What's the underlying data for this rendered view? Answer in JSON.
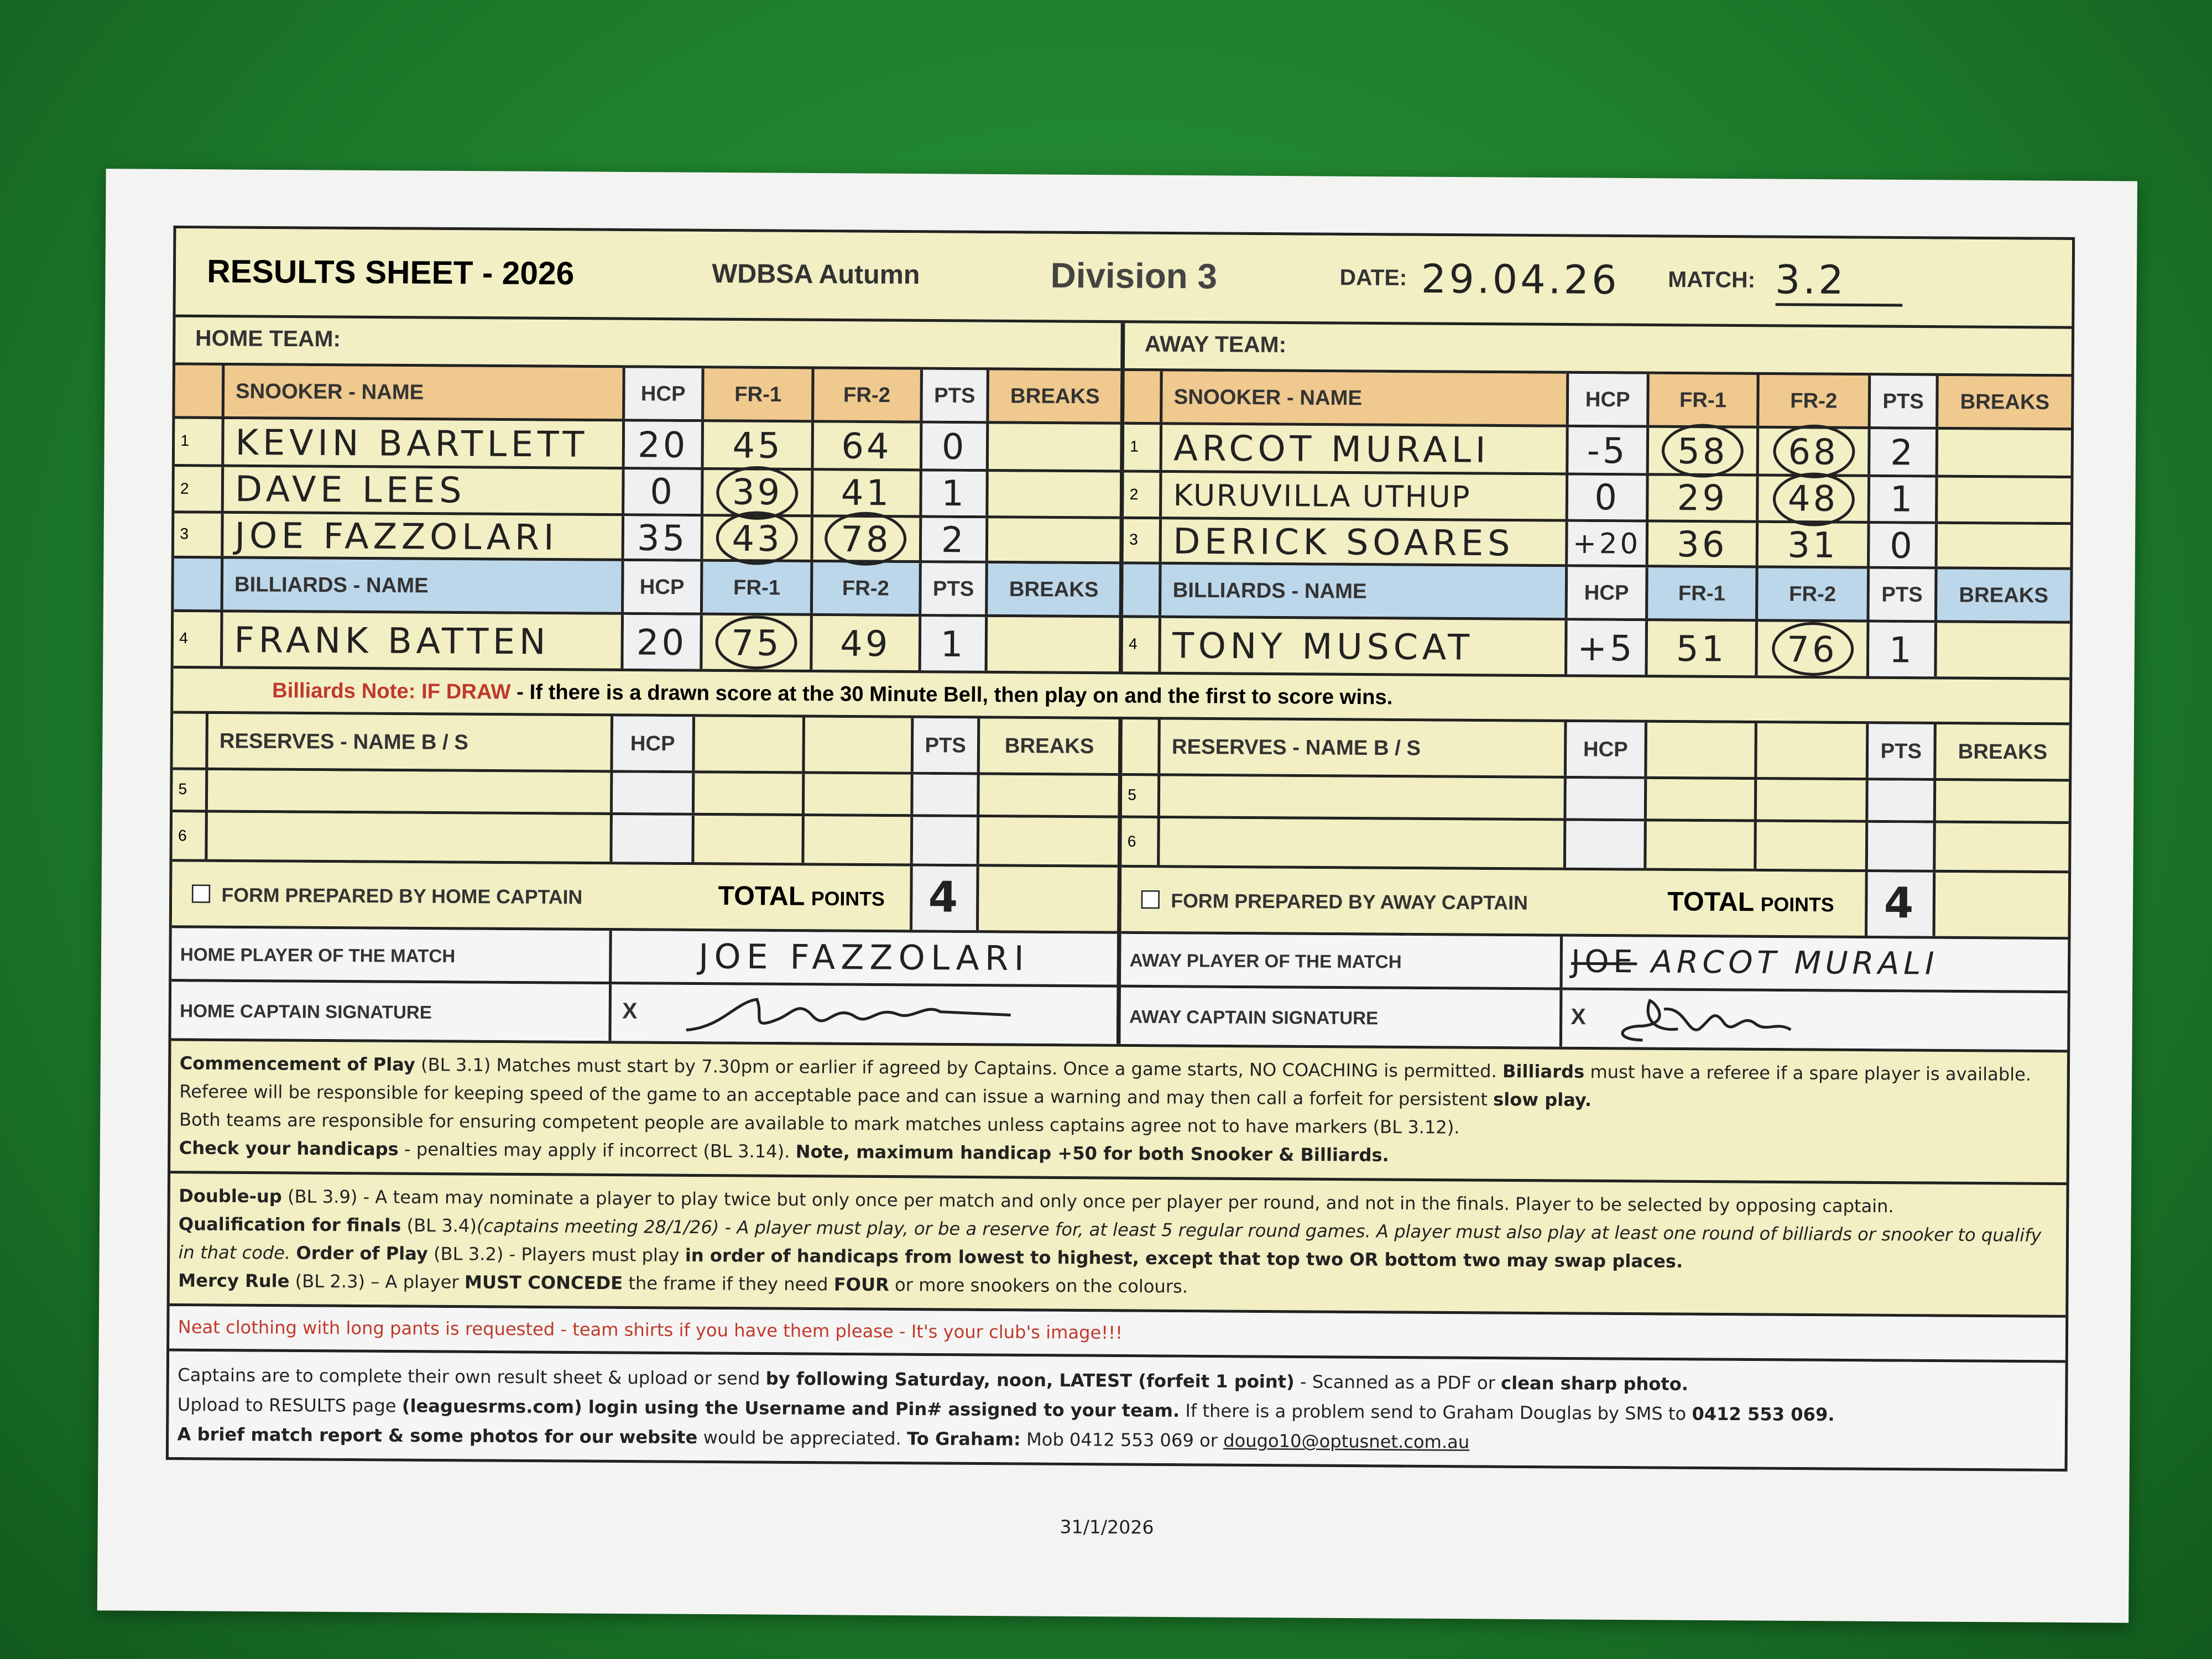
{
  "header": {
    "title": "RESULTS SHEET - 2026",
    "competition": "WDBSA Autumn",
    "division": "Division 3",
    "date_label": "DATE:",
    "date": "29.04.26",
    "match_label": "MATCH:",
    "match": "3.2"
  },
  "columns": {
    "hcp": "HCP",
    "fr1": "FR-1",
    "fr2": "FR-2",
    "pts": "PTS",
    "breaks": "BREAKS"
  },
  "home": {
    "team_label": "HOME TEAM:",
    "snooker_header": "SNOOKER  -  NAME",
    "billiards_header": "BILLIARDS  -   NAME",
    "players": [
      {
        "no": "1",
        "name": "KEVIN BARTLETT",
        "hcp": "20",
        "fr1": "45",
        "fr1_circled": false,
        "fr2": "64",
        "fr2_circled": false,
        "pts": "0",
        "breaks": ""
      },
      {
        "no": "2",
        "name": "DAVE LEES",
        "hcp": "0",
        "fr1": "39",
        "fr1_circled": true,
        "fr2": "41",
        "fr2_circled": false,
        "pts": "1",
        "breaks": ""
      },
      {
        "no": "3",
        "name": "JOE FAZZOLARI",
        "hcp": "35",
        "fr1": "43",
        "fr1_circled": true,
        "fr2": "78",
        "fr2_circled": true,
        "pts": "2",
        "breaks": ""
      },
      {
        "no": "4",
        "name": "FRANK BATTEN",
        "hcp": "20",
        "fr1": "75",
        "fr1_circled": true,
        "fr2": "49",
        "fr2_circled": false,
        "pts": "1",
        "breaks": ""
      }
    ],
    "reserves_header": "RESERVES  -  NAME B / S",
    "reserve_rows": [
      "5",
      "6"
    ],
    "form_label": "FORM PREPARED BY HOME CAPTAIN",
    "total_label": "TOTAL",
    "points_label": "POINTS",
    "total_points": "4",
    "potm_label": "HOME PLAYER OF THE MATCH",
    "potm": "JOE FAZZOLARI",
    "captain_sig_label": "HOME CAPTAIN SIGNATURE",
    "sig_x": "X"
  },
  "away": {
    "team_label": "AWAY TEAM:",
    "snooker_header": "SNOOKER  -  NAME",
    "billiards_header": "BILLIARDS  -   NAME",
    "players": [
      {
        "no": "1",
        "name": "ARCOT MURALI",
        "hcp": "-5",
        "fr1": "58",
        "fr1_circled": true,
        "fr2": "68",
        "fr2_circled": true,
        "pts": "2",
        "breaks": ""
      },
      {
        "no": "2",
        "name": "KURUVILLA UTHUP",
        "hcp": "0",
        "fr1": "29",
        "fr1_circled": false,
        "fr2": "48",
        "fr2_circled": true,
        "pts": "1",
        "breaks": ""
      },
      {
        "no": "3",
        "name": "DERICK SOARES",
        "hcp": "+20",
        "fr1": "36",
        "fr1_circled": false,
        "fr2": "31",
        "fr2_circled": false,
        "pts": "0",
        "breaks": ""
      },
      {
        "no": "4",
        "name": "TONY MUSCAT",
        "hcp": "+5",
        "fr1": "51",
        "fr1_circled": false,
        "fr2": "76",
        "fr2_circled": true,
        "pts": "1",
        "breaks": ""
      }
    ],
    "reserves_header": "RESERVES  -  NAME B / S",
    "reserve_rows": [
      "5",
      "6"
    ],
    "form_label": "FORM PREPARED BY AWAY CAPTAIN",
    "total_label": "TOTAL",
    "points_label": "POINTS",
    "total_points": "4",
    "potm_label": "AWAY PLAYER OF THE MATCH",
    "potm_struck": "JOE",
    "potm": "ARCOT MURALI",
    "captain_sig_label": "AWAY CAPTAIN SIGNATURE",
    "sig_x": "X"
  },
  "billiards_note": {
    "label": "Billiards Note:",
    "if_draw": "IF DRAW",
    "text": "- If there is a drawn score at the 30 Minute Bell, then play on and the first to score wins."
  },
  "rules": {
    "commencement_title": "Commencement of Play",
    "commencement_text": "(BL 3.1) Matches must start by 7.30pm or earlier if agreed by Captains. Once a game starts, NO COACHING is permitted.",
    "billiards_bold": "Billiards",
    "billiards_text": "must have a referee if a spare player is available. Referee will be responsible for keeping speed of the game to an acceptable pace and can issue a warning and may then call a forfeit for persistent",
    "slow_play": "slow play.",
    "markers_text": "Both teams are responsible for ensuring competent people are available to mark matches unless captains agree not to have markers (BL 3.12).",
    "handicaps_title": "Check your handicaps",
    "handicaps_text": "- penalties may apply if incorrect (BL 3.14).",
    "handicaps_note": "Note, maximum handicap +50 for both Snooker & Billiards.",
    "doubleup_title": "Double-up",
    "doubleup_text": "(BL 3.9) - A team may nominate a player to play twice but only once per match and only once per player per round, and not in the finals. Player to be selected by opposing captain.",
    "qualification_title": "Qualification for finals",
    "qualification_ref": "(BL 3.4)",
    "qualification_text": "(captains meeting 28/1/26) - A player must play, or be a reserve for, at least 5 regular round games. A player must also play at least one round of billiards or snooker to qualify in that code.",
    "order_title": "Order of Play",
    "order_text": "(BL 3.2) - Players must play",
    "order_bold": "in order of handicaps from lowest to highest, except that top two OR bottom two may swap places.",
    "mercy_title": "Mercy Rule",
    "mercy_text1": "(BL 2.3) – A player",
    "mercy_bold1": "MUST CONCEDE",
    "mercy_text2": "the frame if they need",
    "mercy_bold2": "FOUR",
    "mercy_text3": "or more snookers on the colours.",
    "clothing": "Neat clothing with long pants is requested - team shirts if you have them please - It's your club's image!!!",
    "captains_text": "Captains are to complete their own result sheet & upload or send",
    "captains_bold": "by following Saturday, noon, LATEST (forfeit 1 point)",
    "captains_text2": "- Scanned as a PDF or",
    "captains_bold2": "clean sharp photo.",
    "upload_text": "Upload to RESULTS page",
    "upload_bold": "(leaguesrms.com) login using the Username and Pin# assigned to your team.",
    "upload_text2": "If there is a problem send to Graham Douglas by SMS to",
    "upload_phone": "0412 553 069.",
    "report_bold": "A brief match report & some photos for our website",
    "report_text": "would be appreciated.",
    "report_bold2": "To Graham:",
    "report_text2": "Mob 0412 553 069 or",
    "email": "dougo10@optusnet.com.au"
  },
  "footer_date": "31/1/2026",
  "colors": {
    "background": "#1c7a2a",
    "snooker_header": "#efc98e",
    "billiards_header": "#bdd7ea",
    "sheet": "#f2efc4",
    "note_red": "#c0392b"
  }
}
